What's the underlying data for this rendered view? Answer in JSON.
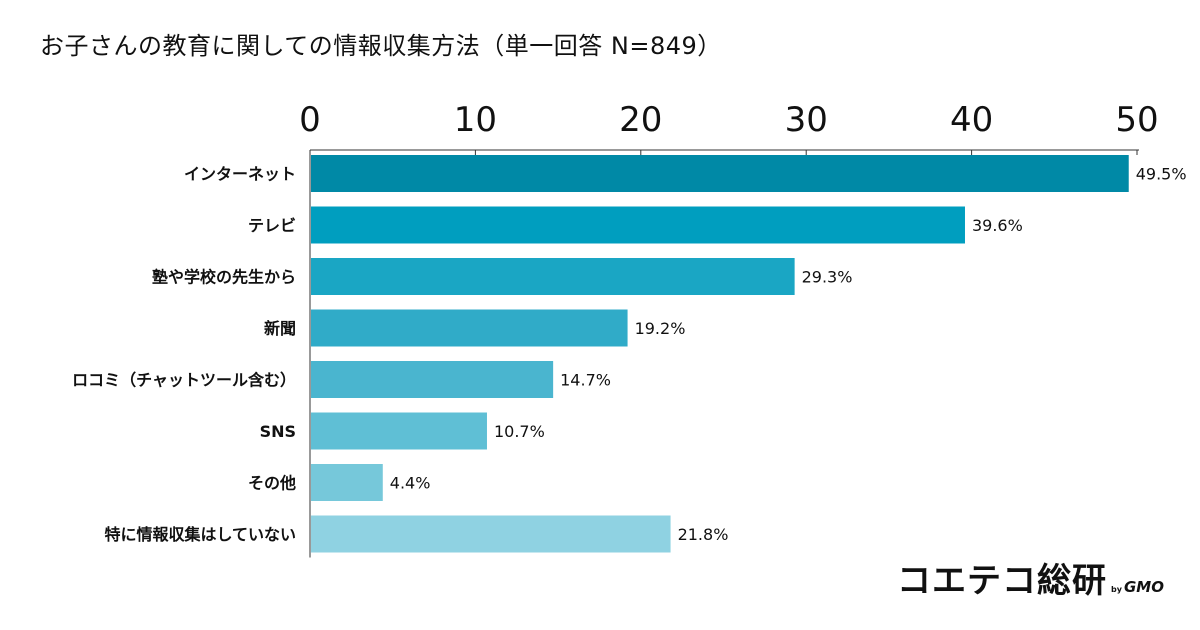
{
  "chart_data": {
    "type": "bar",
    "orientation": "horizontal",
    "title": "お子さんの教育に関しての情報収集方法（単一回答 N=849）",
    "categories": [
      "インターネット",
      "テレビ",
      "塾や学校の先生から",
      "新聞",
      "ロコミ（チャットツール含む）",
      "SNS",
      "その他",
      "特に情報収集はしていない"
    ],
    "values": [
      49.5,
      39.6,
      29.3,
      19.2,
      14.7,
      10.7,
      4.4,
      21.8
    ],
    "value_labels": [
      "49.5%",
      "39.6%",
      "29.3%",
      "19.2%",
      "14.7%",
      "10.7%",
      "4.4%",
      "21.8%"
    ],
    "xlim": [
      0,
      50
    ],
    "x_ticks": [
      "0",
      "10",
      "20",
      "30",
      "40",
      "50"
    ],
    "x_axis_position": "top",
    "grid": false,
    "colors": [
      "#0089a6",
      "#009ebf",
      "#1aa6c4",
      "#30abc8",
      "#4ab5cf",
      "#5fbfd5",
      "#76c8da",
      "#8fd2e2"
    ]
  },
  "branding": {
    "name": "コエテコ総研",
    "by": "by",
    "company": "GMO"
  }
}
